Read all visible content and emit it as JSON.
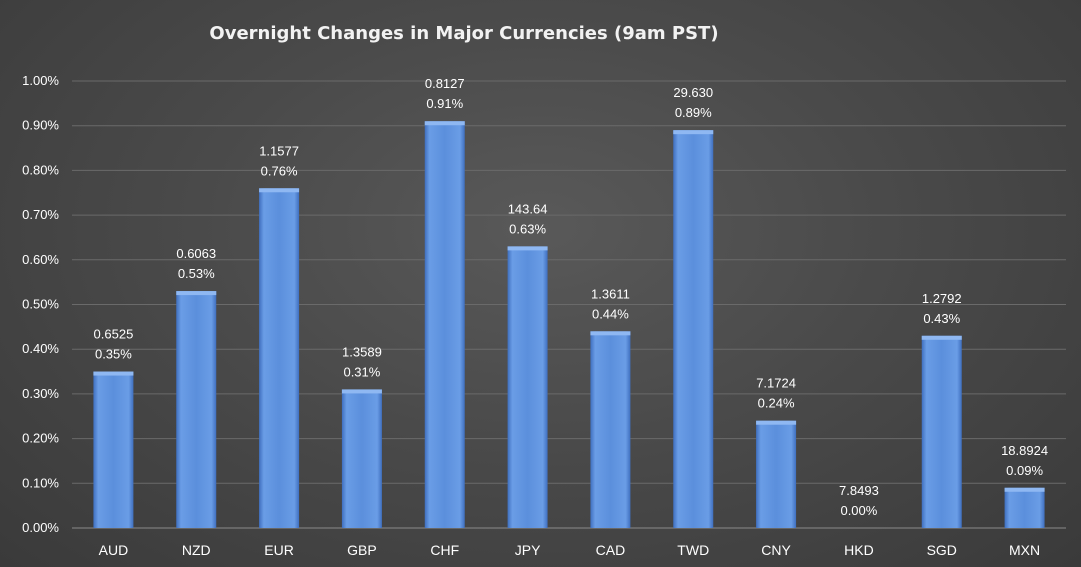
{
  "chart_data": {
    "type": "bar",
    "title": "Overnight Changes in Major Currencies (9am PST)",
    "xlabel": "",
    "ylabel": "",
    "ylim": [
      0,
      1.0
    ],
    "yticks": [
      0,
      0.1,
      0.2,
      0.3,
      0.4,
      0.5,
      0.6,
      0.7,
      0.8,
      0.9,
      1.0
    ],
    "ytick_labels": [
      "0.00%",
      "0.10%",
      "0.20%",
      "0.30%",
      "0.40%",
      "0.50%",
      "0.60%",
      "0.70%",
      "0.80%",
      "0.90%",
      "1.00%"
    ],
    "grid": true,
    "categories": [
      "AUD",
      "NZD",
      "EUR",
      "GBP",
      "CHF",
      "JPY",
      "CAD",
      "TWD",
      "CNY",
      "HKD",
      "SGD",
      "MXN"
    ],
    "values": [
      0.35,
      0.53,
      0.76,
      0.31,
      0.91,
      0.63,
      0.44,
      0.89,
      0.24,
      0.0,
      0.43,
      0.09
    ],
    "value_labels": [
      "0.35%",
      "0.53%",
      "0.76%",
      "0.31%",
      "0.91%",
      "0.63%",
      "0.44%",
      "0.89%",
      "0.24%",
      "0.00%",
      "0.43%",
      "0.09%"
    ],
    "rates": [
      "0.6525",
      "0.6063",
      "1.1577",
      "1.3589",
      "0.8127",
      "143.64",
      "1.3611",
      "29.630",
      "7.1724",
      "7.8493",
      "1.2792",
      "18.8924"
    ],
    "colors": {
      "bar": "#5b8fdc",
      "bar_light": "#8fb8f2",
      "bar_dark": "#3f6fbf",
      "text": "#ffffff"
    }
  }
}
